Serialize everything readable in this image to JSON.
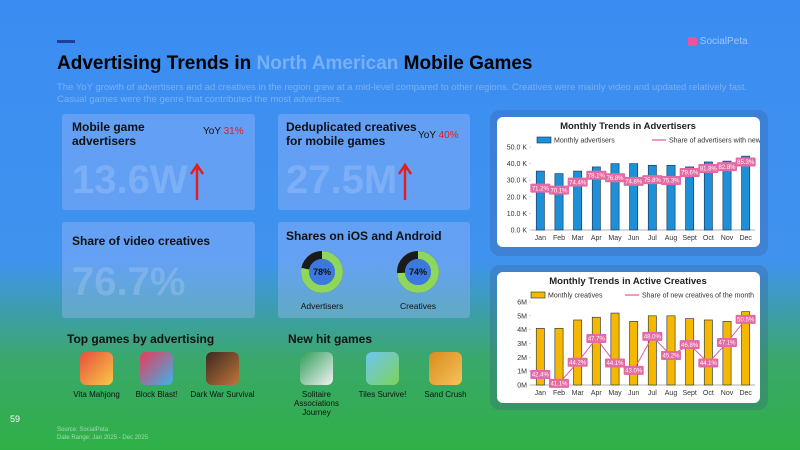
{
  "header": {
    "title_before": "Advertising Trends in",
    "title_highlight": "North American",
    "title_after": "Mobile Games",
    "subtitle": "The YoY growth of advertisers and ad creatives in the region grew at a mid-level compared to other regions. Creatives were mainly video and updated relatively fast. Casual games were the genre that contributed the most advertisers.",
    "logo": "SocialPeta"
  },
  "page_number": "59",
  "footer": {
    "source": "Source: SocialPeta",
    "date_range": "Date Range: Jan 2025 - Dec 2025"
  },
  "cards": [
    {
      "title": "Mobile game advertisers",
      "yoy_label": "YoY",
      "yoy_value": "31%",
      "value": "13.6W"
    },
    {
      "title": "Deduplicated creatives for mobile games",
      "yoy_label": "YoY",
      "yoy_value": "40%",
      "value": "27.5M"
    }
  ],
  "video": {
    "title": "Share of video creatives",
    "value": "76.7%"
  },
  "platform": {
    "title": "Shares on iOS and Android",
    "donuts": [
      {
        "label": "Advertisers",
        "value": 78,
        "value_label": "78%"
      },
      {
        "label": "Creatives",
        "value": 74,
        "value_label": "74%"
      }
    ]
  },
  "top_games": {
    "title": "Top games by advertising",
    "items": [
      "Vita Mahjong",
      "Block Blast!",
      "Dark War Survival"
    ]
  },
  "new_games": {
    "title": "New hit games",
    "items": [
      "Solitaire Associations Journey",
      "Tiles Survive!",
      "Sand Crush"
    ]
  },
  "chart_data": [
    {
      "type": "combo",
      "title": "Monthly Trends in Advertisers",
      "categories": [
        "Jan",
        "Feb",
        "Mar",
        "Apr",
        "May",
        "Jun",
        "Jul",
        "Aug",
        "Sept",
        "Oct",
        "Nov",
        "Dec"
      ],
      "series": [
        {
          "name": "Monthly advertisers",
          "type": "bar",
          "color": "#1e90d8",
          "values": [
            35.5,
            34,
            35.5,
            38,
            40,
            40,
            39,
            39,
            38,
            41,
            41.5,
            44.5
          ]
        },
        {
          "name": "Share of advertisers with new creatives",
          "type": "line",
          "axis": "y2",
          "color": "#e8559a",
          "values": [
            71.2,
            70.1,
            74.4,
            78.1,
            76.8,
            74.8,
            75.8,
            75.3,
            79.6,
            81.8,
            82.8,
            85.3
          ],
          "value_labels": [
            "71.2%",
            "70.1%",
            "74.4%",
            "78.1%",
            "76.8%",
            "74.8%",
            "75.8%",
            "75.3%",
            "79.6%",
            "81.8%",
            "82.8%",
            "85.3%"
          ]
        }
      ],
      "ylim": [
        0,
        50
      ],
      "yticks": [
        {
          "value": 0,
          "label": "0.0 K"
        },
        {
          "value": 10,
          "label": "10.0 K"
        },
        {
          "value": 20,
          "label": "20.0 K"
        },
        {
          "value": 30,
          "label": "30.0 K"
        },
        {
          "value": 40,
          "label": "40.0 K"
        },
        {
          "value": 50,
          "label": "50.0 K"
        }
      ]
    },
    {
      "type": "combo",
      "title": "Monthly Trends in Active Creatives",
      "categories": [
        "Jan",
        "Feb",
        "Mar",
        "Apr",
        "May",
        "Jun",
        "Jul",
        "Aug",
        "Sept",
        "Oct",
        "Nov",
        "Dec"
      ],
      "series": [
        {
          "name": "Monthly creatives",
          "type": "bar",
          "color": "#f5b800",
          "values": [
            4.1,
            4.1,
            4.7,
            4.9,
            5.2,
            4.6,
            5.0,
            5.0,
            4.8,
            4.7,
            4.6,
            5.3
          ]
        },
        {
          "name": "Share of new creatives of the month",
          "type": "line",
          "axis": "y2",
          "color": "#e8559a",
          "values": [
            42.4,
            41.1,
            44.2,
            47.7,
            44.1,
            43.0,
            48.0,
            45.2,
            46.8,
            44.1,
            47.1,
            50.5
          ],
          "value_labels": [
            "42.4%",
            "41.1%",
            "44.2%",
            "47.7%",
            "44.1%",
            "43.0%",
            "48.0%",
            "45.2%",
            "46.8%",
            "44.1%",
            "47.1%",
            "50.5%"
          ]
        }
      ],
      "ylim": [
        0,
        6
      ],
      "yticks": [
        {
          "value": 0,
          "label": "0M"
        },
        {
          "value": 1,
          "label": "1M"
        },
        {
          "value": 2,
          "label": "2M"
        },
        {
          "value": 3,
          "label": "3M"
        },
        {
          "value": 4,
          "label": "4M"
        },
        {
          "value": 5,
          "label": "5M"
        },
        {
          "value": 6,
          "label": "6M"
        }
      ]
    }
  ]
}
